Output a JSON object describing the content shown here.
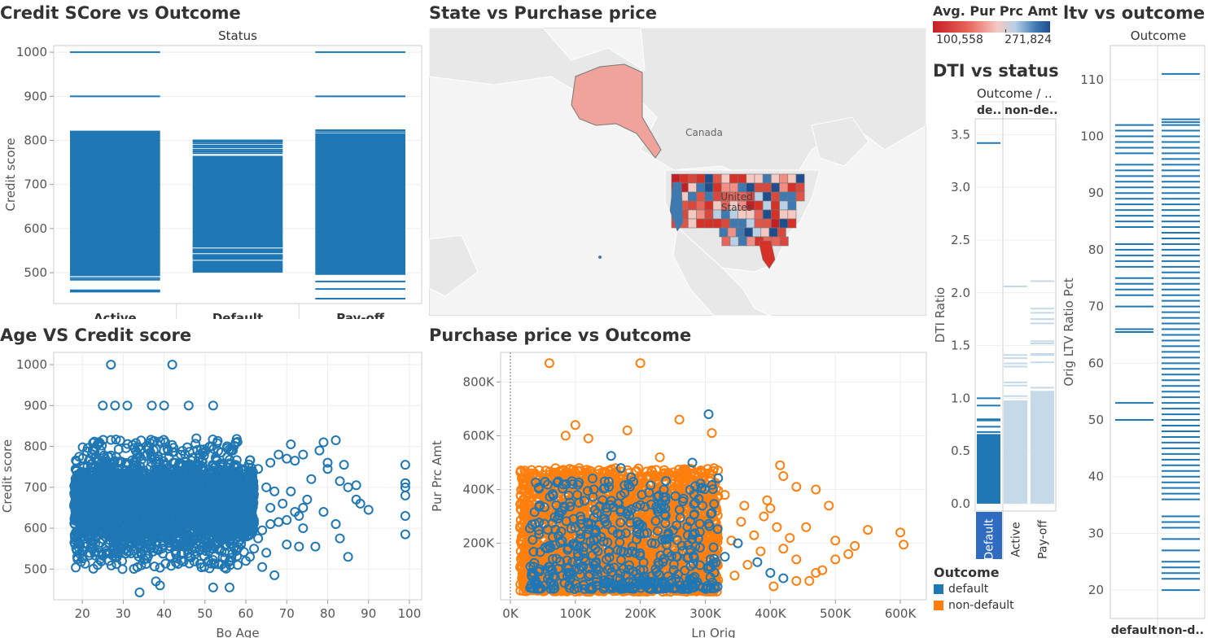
{
  "titles": {
    "credit_outcome": "Credit SCore vs Outcome",
    "state_price": "State vs Purchase price",
    "age_credit": "Age VS Credit score",
    "price_outcome": "Purchase price vs Outcome",
    "dti_status": "DTI vs status",
    "ltv_outcome": "ltv vs outcome"
  },
  "colors": {
    "default": "#1f77b4",
    "non_default": "#ff7f0e",
    "light_blue": "#c5d9e8",
    "map_low": "#d62728",
    "map_high": "#1f4e8c",
    "land": "#e8e8e8",
    "water": "#f4f4f4"
  },
  "map_legend": {
    "title": "Avg. Pur Prc Amt",
    "min": "100,558",
    "max": "271,824"
  },
  "map_labels": {
    "canada": "Canada",
    "us1": "United",
    "us2": "States"
  },
  "outcome_legend": {
    "title": "Outcome",
    "items": [
      {
        "label": "default",
        "color": "#1f77b4"
      },
      {
        "label": "non-default",
        "color": "#ff7f0e"
      }
    ]
  },
  "chart_data": [
    {
      "id": "credit_outcome",
      "type": "bar",
      "title": "Credit SCore vs Outcome",
      "header": "Status",
      "xlabel": "",
      "ylabel": "Credit score",
      "categories": [
        "Active",
        "Default",
        "Pay-off"
      ],
      "yticks": [
        500,
        600,
        700,
        800,
        900,
        1000
      ],
      "ylim": [
        430,
        1015
      ],
      "bands": [
        {
          "category": "Active",
          "from": 492,
          "to": 822,
          "lines": [
            1000,
            900,
            488,
            484,
            460,
            457
          ]
        },
        {
          "category": "Default",
          "from": 500,
          "to": 765,
          "lines": [
            800,
            797,
            793,
            788,
            784,
            779,
            775,
            771,
            565,
            560,
            554,
            548,
            537,
            533
          ]
        },
        {
          "category": "Pay-off",
          "from": 495,
          "to": 816,
          "lines": [
            1000,
            900,
            823,
            819,
            480,
            463,
            441
          ]
        }
      ]
    },
    {
      "id": "dti_status",
      "type": "bar",
      "title": "DTI vs status",
      "header": "Outcome  /  ..",
      "column_headers": [
        "de..",
        "non-de.."
      ],
      "xlabel": "",
      "ylabel": "DTI Ratio",
      "categories": [
        "Default",
        "Active",
        "Pay-off"
      ],
      "yticks": [
        0.0,
        0.5,
        1.0,
        1.5,
        2.0,
        2.5,
        3.0,
        3.5
      ],
      "ylim": [
        -0.07,
        3.65
      ],
      "bands": [
        {
          "category": "Default",
          "from": 0.0,
          "to": 0.66,
          "lines": [
            3.42,
            1.0,
            0.93,
            0.8,
            0.79,
            0.73,
            0.68
          ]
        },
        {
          "category": "Active",
          "from": 0.0,
          "to": 0.98,
          "lines": [
            2.06,
            1.41,
            1.38,
            1.33,
            1.3,
            1.15,
            1.12,
            1.02
          ]
        },
        {
          "category": "Pay-off",
          "from": 0.0,
          "to": 1.07,
          "lines": [
            2.11,
            1.85,
            1.81,
            1.75,
            1.71,
            1.54,
            1.52,
            1.42,
            1.41,
            1.34,
            1.1
          ]
        }
      ]
    },
    {
      "id": "ltv_outcome",
      "type": "bar",
      "title": "ltv vs outcome",
      "header": "Outcome",
      "xlabel": "",
      "ylabel": "Orig LTV Ratio Pct",
      "categories": [
        "default",
        "non-d.."
      ],
      "yticks": [
        20,
        30,
        40,
        50,
        60,
        70,
        80,
        90,
        100,
        110
      ],
      "ylim": [
        15,
        116
      ],
      "ticks_default": [
        102,
        101,
        100,
        99,
        98,
        97,
        95,
        94,
        93,
        92,
        91,
        90,
        89,
        88,
        87,
        86,
        85,
        84,
        81,
        80,
        79,
        78,
        77,
        75,
        74,
        73,
        72,
        70,
        66,
        65.5,
        53,
        50
      ],
      "ticks_nondefault": [
        111,
        103,
        102.5,
        102,
        101,
        100,
        99,
        98,
        97,
        96,
        95,
        94,
        93,
        92,
        91,
        90,
        89,
        88,
        87,
        86,
        85,
        84,
        83,
        82,
        81,
        80,
        79,
        78,
        77,
        76,
        75,
        74,
        73,
        72,
        71,
        70,
        69,
        68,
        67,
        66,
        65,
        64,
        63,
        62,
        61,
        60,
        59,
        58,
        57,
        56,
        55,
        54,
        53,
        52,
        51,
        50,
        49,
        48,
        47,
        46,
        45,
        44,
        43,
        42,
        41,
        40,
        39,
        38,
        37,
        36,
        33,
        32,
        31,
        29,
        27,
        25,
        24,
        23,
        22,
        20
      ]
    },
    {
      "id": "age_credit",
      "type": "scatter",
      "title": "Age VS Credit score",
      "xlabel": "Bo Age",
      "ylabel": "Credit score",
      "xticks": [
        20,
        30,
        40,
        50,
        60,
        70,
        80,
        90,
        100
      ],
      "yticks": [
        500,
        600,
        700,
        800,
        900,
        1000
      ],
      "xlim": [
        13,
        103
      ],
      "ylim": [
        425,
        1030
      ],
      "dense_region": {
        "x": [
          18,
          62
        ],
        "y": [
          500,
          820
        ],
        "count": 3000
      },
      "points": [
        [
          27,
          1000
        ],
        [
          42,
          1000
        ],
        [
          25,
          900
        ],
        [
          28,
          900
        ],
        [
          31,
          900
        ],
        [
          37,
          900
        ],
        [
          40,
          900
        ],
        [
          46,
          900
        ],
        [
          52,
          900
        ],
        [
          34,
          443
        ],
        [
          38,
          470
        ],
        [
          39,
          460
        ],
        [
          52,
          455
        ],
        [
          56,
          455
        ],
        [
          67,
          485
        ],
        [
          85,
          530
        ],
        [
          83,
          575
        ],
        [
          77,
          555
        ],
        [
          79,
          640
        ],
        [
          82,
          610
        ],
        [
          87,
          670
        ],
        [
          90,
          645
        ],
        [
          88,
          660
        ],
        [
          85,
          700
        ],
        [
          83,
          715
        ],
        [
          80,
          760
        ],
        [
          78,
          790
        ],
        [
          74,
          780
        ],
        [
          72,
          765
        ],
        [
          70,
          770
        ],
        [
          68,
          780
        ],
        [
          71,
          805
        ],
        [
          79,
          810
        ],
        [
          82,
          815
        ],
        [
          80,
          745
        ],
        [
          76,
          720
        ],
        [
          84,
          755
        ],
        [
          87,
          705
        ],
        [
          99,
          755
        ],
        [
          99,
          710
        ],
        [
          99,
          700
        ],
        [
          99,
          680
        ],
        [
          99,
          630
        ],
        [
          99,
          585
        ],
        [
          63,
          575
        ],
        [
          64,
          595
        ],
        [
          66,
          610
        ],
        [
          68,
          615
        ],
        [
          70,
          620
        ],
        [
          72,
          640
        ],
        [
          74,
          600
        ],
        [
          73,
          630
        ],
        [
          69,
          660
        ],
        [
          71,
          690
        ],
        [
          75,
          670
        ],
        [
          74,
          650
        ],
        [
          65,
          540
        ],
        [
          60,
          520
        ],
        [
          58,
          510
        ],
        [
          61,
          530
        ],
        [
          62,
          550
        ],
        [
          56,
          520
        ],
        [
          64,
          505
        ],
        [
          70,
          560
        ],
        [
          73,
          555
        ],
        [
          66,
          650
        ],
        [
          65,
          700
        ],
        [
          67,
          690
        ],
        [
          63,
          745
        ],
        [
          66,
          760
        ]
      ]
    },
    {
      "id": "price_outcome",
      "type": "scatter",
      "title": "Purchase price vs Outcome",
      "xlabel": "Ln Orig",
      "ylabel": "Pur Prc Amt",
      "xticks": [
        "0K",
        "100K",
        "200K",
        "300K",
        "400K",
        "500K",
        "600K"
      ],
      "xtick_values": [
        0,
        100000,
        200000,
        300000,
        400000,
        500000,
        600000
      ],
      "yticks": [
        "200K",
        "400K",
        "600K",
        "800K"
      ],
      "ytick_values": [
        200000,
        400000,
        600000,
        800000
      ],
      "xlim": [
        -15000,
        640000
      ],
      "ylim": [
        -10000,
        910000
      ],
      "series": [
        {
          "name": "default",
          "dense_region": {
            "x": [
              30000,
              320000
            ],
            "y": [
              30000,
              450000
            ],
            "count": 500
          },
          "points": [
            [
              305000,
              680000
            ],
            [
              155000,
              525000
            ],
            [
              170000,
              480000
            ],
            [
              280000,
              500000
            ],
            [
              350000,
              200000
            ],
            [
              380000,
              130000
            ],
            [
              400000,
              90000
            ],
            [
              420000,
              70000
            ],
            [
              330000,
              150000
            ]
          ]
        },
        {
          "name": "non-default",
          "dense_region": {
            "x": [
              15000,
              320000
            ],
            "y": [
              20000,
              480000
            ],
            "count": 2500
          },
          "points": [
            [
              60000,
              870000
            ],
            [
              200000,
              870000
            ],
            [
              100000,
              640000
            ],
            [
              180000,
              620000
            ],
            [
              260000,
              660000
            ],
            [
              310000,
              610000
            ],
            [
              120000,
              590000
            ],
            [
              85000,
              600000
            ],
            [
              230000,
              520000
            ],
            [
              330000,
              380000
            ],
            [
              360000,
              340000
            ],
            [
              400000,
              330000
            ],
            [
              420000,
              450000
            ],
            [
              440000,
              410000
            ],
            [
              470000,
              400000
            ],
            [
              490000,
              340000
            ],
            [
              520000,
              160000
            ],
            [
              500000,
              210000
            ],
            [
              480000,
              100000
            ],
            [
              460000,
              60000
            ],
            [
              600000,
              240000
            ],
            [
              605000,
              195000
            ],
            [
              550000,
              250000
            ],
            [
              530000,
              190000
            ],
            [
              440000,
              140000
            ],
            [
              420000,
              180000
            ],
            [
              410000,
              260000
            ],
            [
              390000,
              300000
            ],
            [
              375000,
              230000
            ],
            [
              355000,
              280000
            ],
            [
              340000,
              210000
            ],
            [
              440000,
              60000
            ],
            [
              470000,
              90000
            ],
            [
              500000,
              140000
            ],
            [
              385000,
              170000
            ],
            [
              365000,
              120000
            ],
            [
              345000,
              80000
            ],
            [
              405000,
              40000
            ],
            [
              430000,
              220000
            ],
            [
              455000,
              260000
            ],
            [
              395000,
              360000
            ],
            [
              415000,
              490000
            ]
          ]
        }
      ]
    }
  ]
}
